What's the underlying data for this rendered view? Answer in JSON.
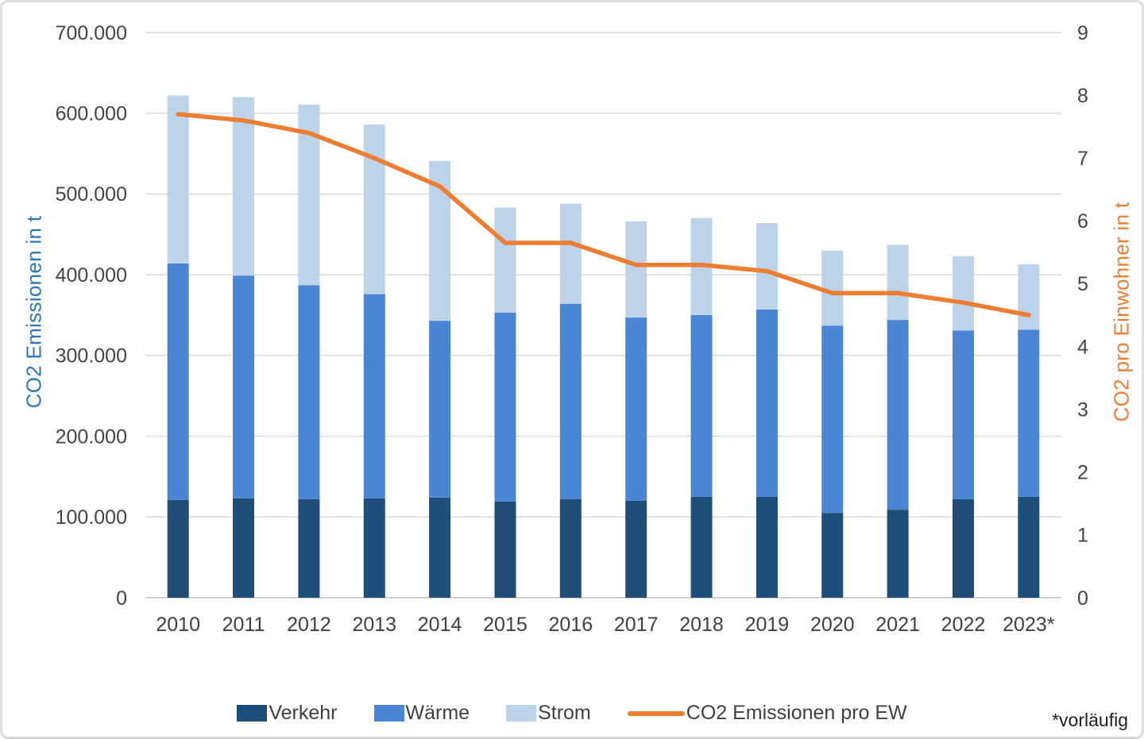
{
  "chart_data": {
    "type": "bar",
    "stacked": true,
    "line_overlay": true,
    "grid": true,
    "legend_position": "bottom",
    "categories": [
      "2010",
      "2011",
      "2012",
      "2013",
      "2014",
      "2015",
      "2016",
      "2017",
      "2018",
      "2019",
      "2020",
      "2021",
      "2022",
      "2023*"
    ],
    "series": [
      {
        "name": "Verkehr",
        "type": "bar",
        "axis": "left",
        "color": "#1F4E79",
        "values": [
          121000,
          123000,
          122000,
          123000,
          124000,
          119000,
          122000,
          120000,
          125000,
          125000,
          105000,
          109000,
          122000,
          125000
        ]
      },
      {
        "name": "Wärme",
        "type": "bar",
        "axis": "left",
        "color": "#4A86D3",
        "values": [
          293000,
          276000,
          265000,
          253000,
          219000,
          234000,
          242000,
          227000,
          225000,
          232000,
          232000,
          235000,
          209000,
          207000
        ]
      },
      {
        "name": "Strom",
        "type": "bar",
        "axis": "left",
        "color": "#BDD3EA",
        "values": [
          208000,
          221000,
          224000,
          210000,
          198000,
          130000,
          124000,
          119000,
          120000,
          107000,
          93000,
          93000,
          92000,
          81000
        ]
      },
      {
        "name": "CO2 Emissionen pro EW",
        "type": "line",
        "axis": "right",
        "color": "#ED7D31",
        "values": [
          7.7,
          7.6,
          7.4,
          7.0,
          6.55,
          5.65,
          5.65,
          5.3,
          5.3,
          5.2,
          4.85,
          4.85,
          4.7,
          4.5
        ]
      }
    ],
    "left_axis": {
      "title": "CO2 Emissionen in t",
      "title_color": "#2E75B6",
      "min": 0,
      "max": 700000,
      "step": 100000,
      "tick_labels": [
        "0",
        "100.000",
        "200.000",
        "300.000",
        "400.000",
        "500.000",
        "600.000",
        "700.000"
      ]
    },
    "right_axis": {
      "title": "CO2  pro Einwohner in t",
      "title_color": "#ED7D31",
      "min": 0,
      "max": 9,
      "step": 1,
      "tick_labels": [
        "0",
        "1",
        "2",
        "3",
        "4",
        "5",
        "6",
        "7",
        "8",
        "9"
      ]
    },
    "footnote": "*vorläufig"
  }
}
